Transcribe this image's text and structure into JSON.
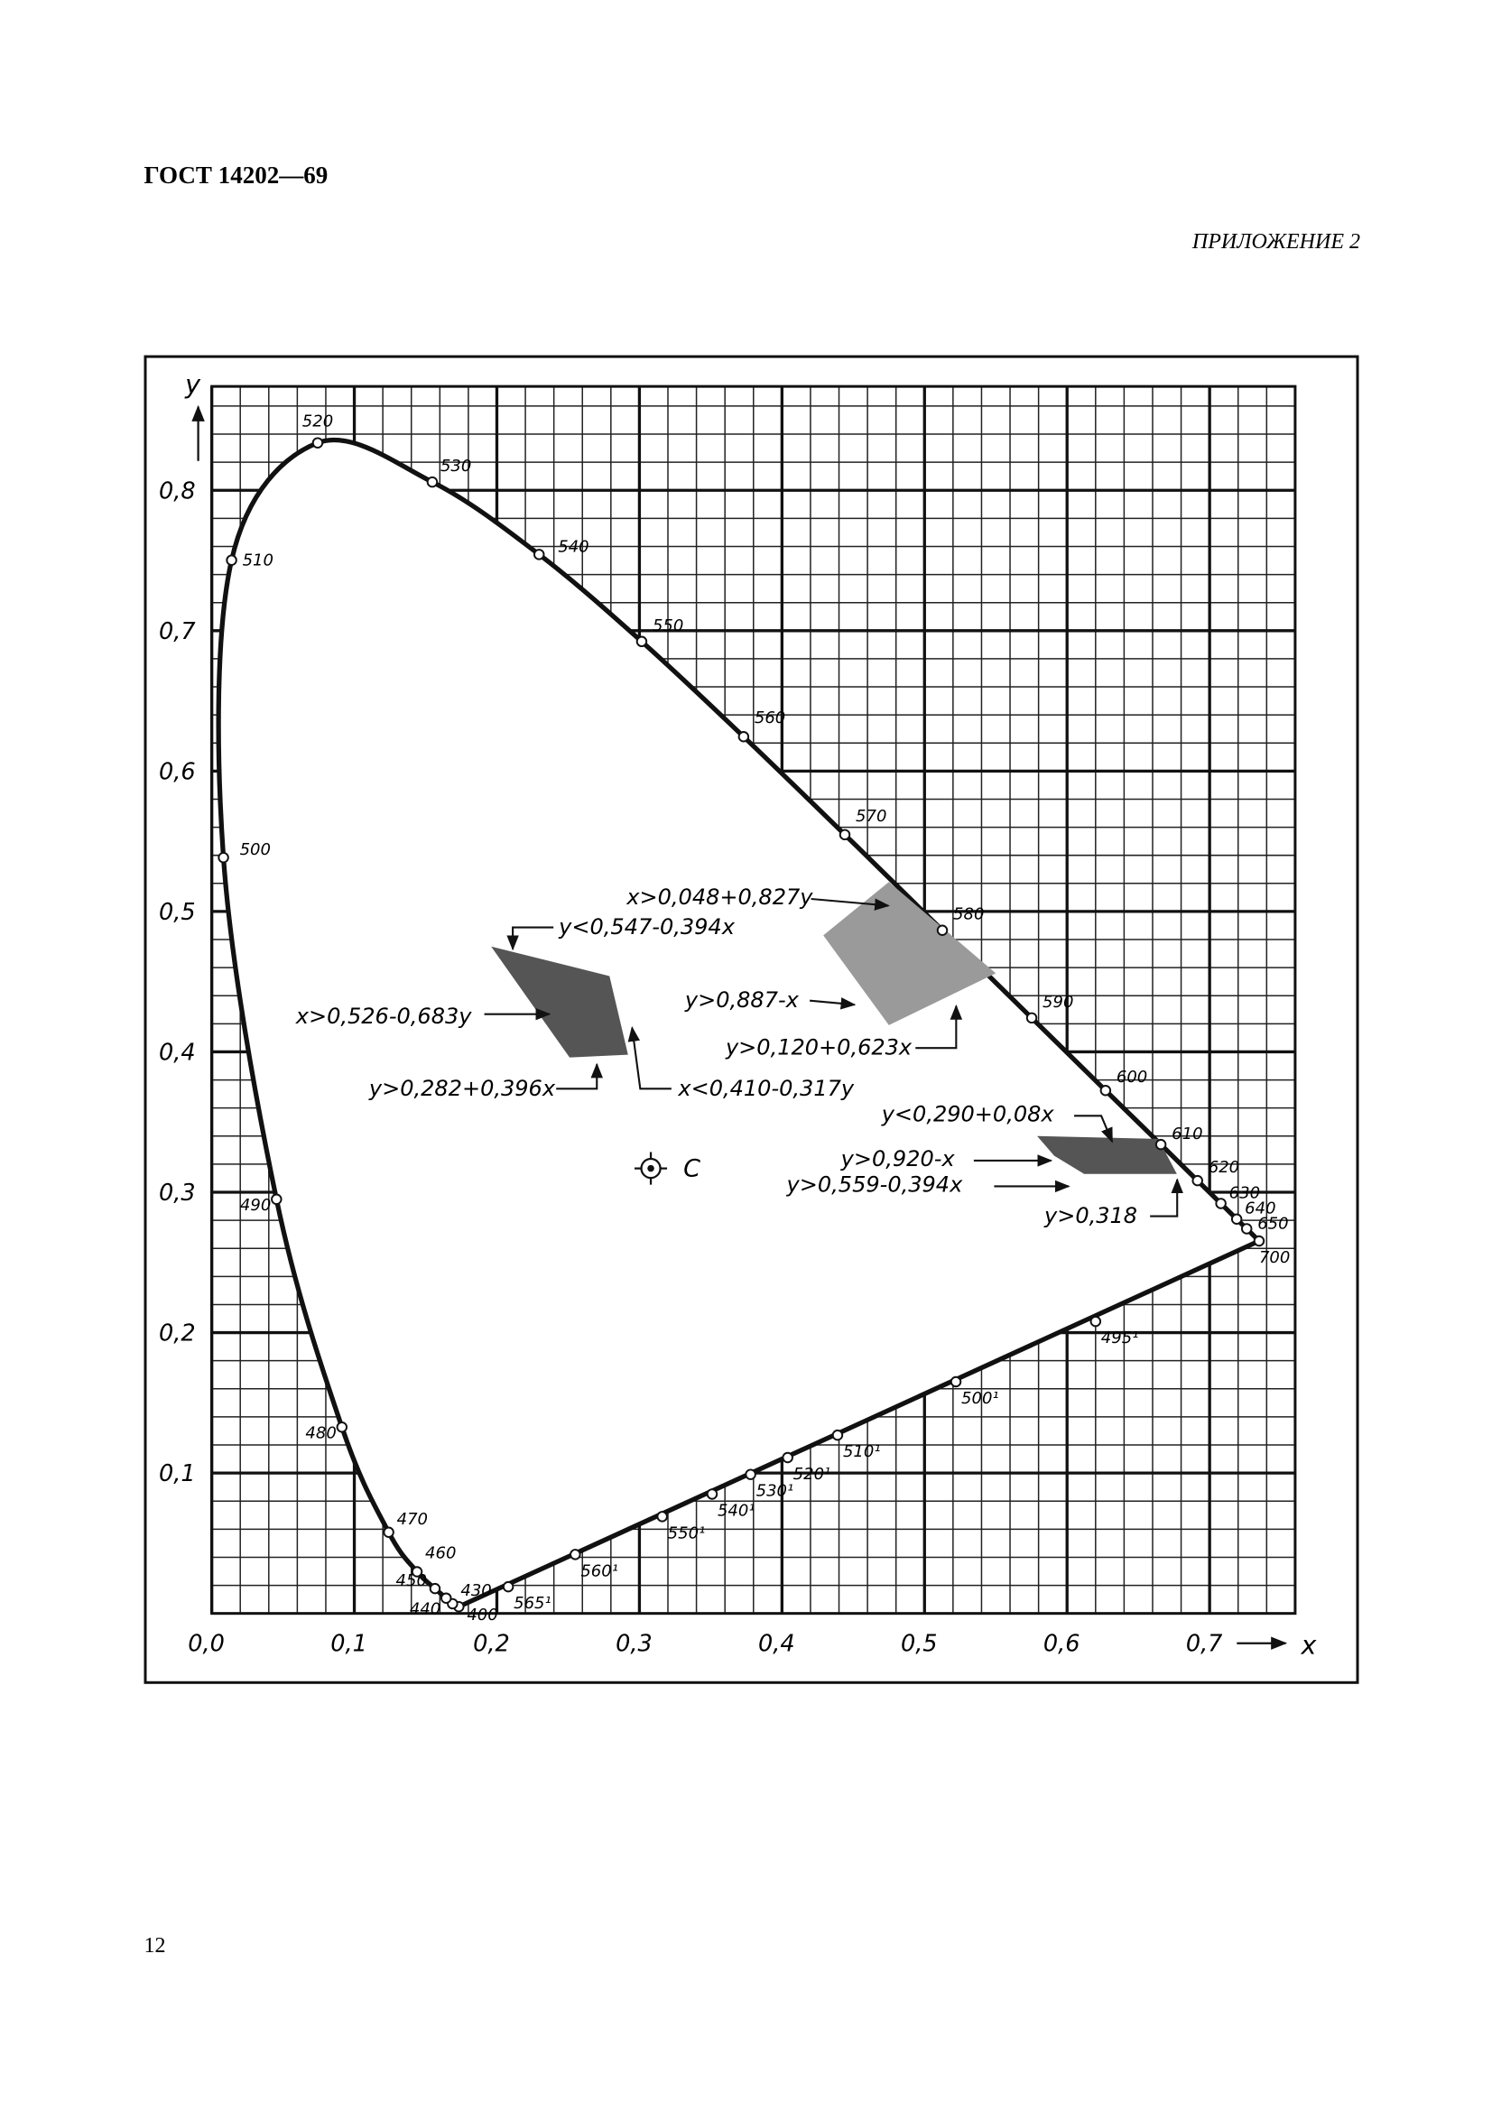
{
  "header": {
    "standard": "ГОСТ 14202—69",
    "appendix": "ПРИЛОЖЕНИЕ 2"
  },
  "chart_data": {
    "type": "chromaticity",
    "x_label": "x",
    "y_label": "y",
    "xlim": [
      0,
      0.76
    ],
    "ylim": [
      0,
      0.874
    ],
    "xticks": [
      {
        "value": 0,
        "label": "0,0"
      },
      {
        "value": 0.1,
        "label": "0,1"
      },
      {
        "value": 0.2,
        "label": "0,2"
      },
      {
        "value": 0.3,
        "label": "0,3"
      },
      {
        "value": 0.4,
        "label": "0,4"
      },
      {
        "value": 0.5,
        "label": "0,5"
      },
      {
        "value": 0.6,
        "label": "0,6"
      },
      {
        "value": 0.7,
        "label": "0,7"
      }
    ],
    "yticks": [
      {
        "value": 0.1,
        "label": "0,1"
      },
      {
        "value": 0.2,
        "label": "0,2"
      },
      {
        "value": 0.3,
        "label": "0,3"
      },
      {
        "value": 0.4,
        "label": "0,4"
      },
      {
        "value": 0.5,
        "label": "0,5"
      },
      {
        "value": 0.6,
        "label": "0,6"
      },
      {
        "value": 0.7,
        "label": "0,7"
      },
      {
        "value": 0.8,
        "label": "0,8"
      }
    ],
    "grid": true,
    "spectral_locus": {
      "labels": [
        "400",
        "430",
        "440",
        "450",
        "460",
        "470",
        "480",
        "490",
        "500",
        "510",
        "520",
        "530",
        "540",
        "550",
        "560",
        "570",
        "580",
        "590",
        "600",
        "610",
        "620",
        "630",
        "640",
        "650",
        "700"
      ],
      "x": [
        0.1733,
        0.1689,
        0.1644,
        0.1566,
        0.144,
        0.1241,
        0.0913,
        0.0454,
        0.0082,
        0.0139,
        0.0743,
        0.1547,
        0.2296,
        0.3016,
        0.3731,
        0.4441,
        0.5125,
        0.5752,
        0.627,
        0.6658,
        0.6915,
        0.7079,
        0.719,
        0.726,
        0.7347
      ],
      "y": [
        0.0048,
        0.0069,
        0.0109,
        0.0177,
        0.0297,
        0.0578,
        0.1327,
        0.295,
        0.5384,
        0.7502,
        0.8338,
        0.8059,
        0.7543,
        0.6923,
        0.6245,
        0.5547,
        0.4866,
        0.4242,
        0.3725,
        0.334,
        0.3083,
        0.292,
        0.2809,
        0.274,
        0.2653
      ]
    },
    "purple_line": {
      "labels": [
        "565¹",
        "560¹",
        "550¹",
        "540¹",
        "530¹",
        "520¹",
        "510¹",
        "500¹",
        "495¹"
      ],
      "x": [
        0.208,
        0.255,
        0.316,
        0.351,
        0.378,
        0.404,
        0.439,
        0.522,
        0.62
      ],
      "y": [
        0.019,
        0.042,
        0.069,
        0.085,
        0.099,
        0.111,
        0.127,
        0.165,
        0.208
      ]
    },
    "white_point": {
      "label": "C",
      "x": 0.308,
      "y": 0.317
    },
    "regions": [
      {
        "color": "#555555",
        "x": [
          0.196,
          0.279,
          0.292,
          0.251
        ],
        "y": [
          0.475,
          0.454,
          0.398,
          0.396
        ]
      },
      {
        "color": "#9a9a9a",
        "x": [
          0.429,
          0.475,
          0.55,
          0.475
        ],
        "y": [
          0.483,
          0.521,
          0.456,
          0.419
        ]
      },
      {
        "color": "#555555",
        "x": [
          0.579,
          0.664,
          0.677,
          0.612,
          0.591
        ],
        "y": [
          0.34,
          0.338,
          0.313,
          0.313,
          0.326
        ]
      }
    ],
    "annotations": [
      "x>0,048+0,827y",
      "y<0,547-0,394x",
      "x>0,526-0,683y",
      "y>0,282+0,396x",
      "x<0,410-0,317y",
      "y>0,887-x",
      "y>0,120+0,623x",
      "y<0,290+0,08x",
      "y>0,920-x",
      "y>0,559-0,394x",
      "y>0,318"
    ]
  },
  "page_number": "12"
}
